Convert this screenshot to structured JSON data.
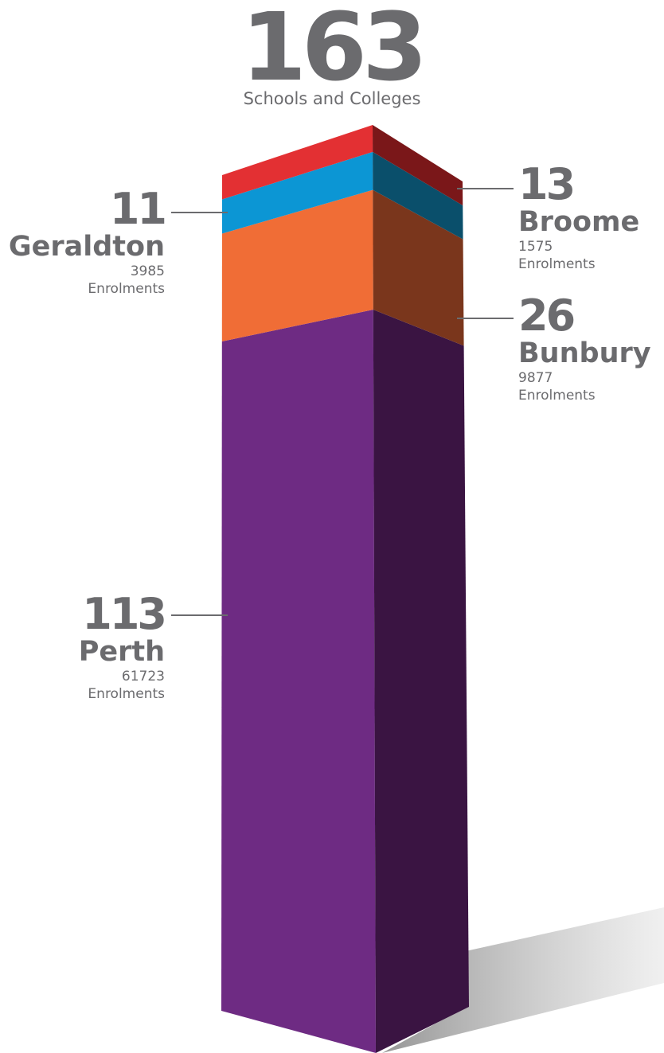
{
  "header": {
    "total": "163",
    "total_label": "Schools and Colleges"
  },
  "colors": {
    "text": "#6b6b6e",
    "perth_front": "#6e2b83",
    "perth_side": "#3a1442",
    "bunbury_front": "#f06d36",
    "bunbury_side": "#7a361c",
    "geraldton_front": "#0c96d4",
    "geraldton_side": "#0a4f6b",
    "broome_front": "#e33033",
    "broome_side": "#7a1719",
    "leader": "#6b6b6e"
  },
  "chart_data": {
    "type": "bar",
    "stacked": true,
    "title": "163",
    "subtitle": "Schools and Colleges",
    "total": 163,
    "categories": [
      "Perth",
      "Bunbury",
      "Geraldton",
      "Broome"
    ],
    "series": [
      {
        "name": "Schools and Colleges",
        "values": [
          113,
          26,
          11,
          13
        ]
      },
      {
        "name": "Enrolments",
        "values": [
          61723,
          9877,
          3985,
          1575
        ]
      }
    ],
    "segments": [
      {
        "city": "Perth",
        "schools": 113,
        "enrolments": 61723
      },
      {
        "city": "Bunbury",
        "schools": 26,
        "enrolments": 9877
      },
      {
        "city": "Geraldton",
        "schools": 11,
        "enrolments": 3985
      },
      {
        "city": "Broome",
        "schools": 13,
        "enrolments": 1575
      }
    ]
  },
  "labels": {
    "geraldton": {
      "number": "11",
      "city": "Geraldton",
      "count": "3985",
      "unit": "Enrolments"
    },
    "perth": {
      "number": "113",
      "city": "Perth",
      "count": "61723",
      "unit": "Enrolments"
    },
    "broome": {
      "number": "13",
      "city": "Broome",
      "count": "1575",
      "unit": "Enrolments"
    },
    "bunbury": {
      "number": "26",
      "city": "Bunbury",
      "count": "9877",
      "unit": "Enrolments"
    }
  }
}
